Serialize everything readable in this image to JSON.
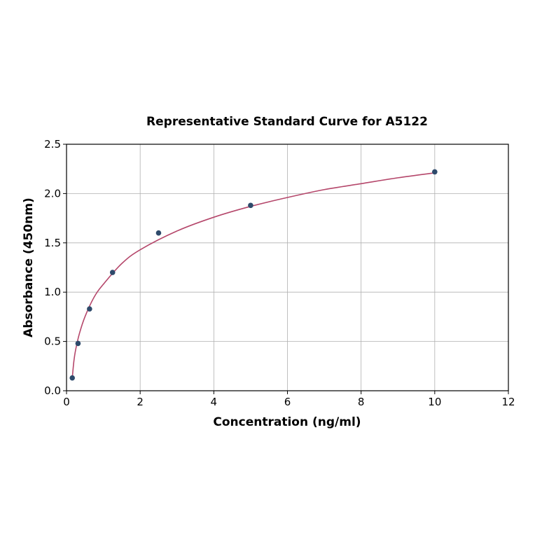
{
  "chart_data": {
    "type": "scatter",
    "title": "Representative Standard Curve for A5122",
    "xlabel": "Concentration (ng/ml)",
    "ylabel": "Absorbance (450nm)",
    "xlim": [
      0,
      12
    ],
    "ylim": [
      0,
      2.5
    ],
    "xticks": [
      "0",
      "2",
      "4",
      "6",
      "8",
      "10",
      "12"
    ],
    "yticks": [
      "0.0",
      "0.5",
      "1.0",
      "1.5",
      "2.0",
      "2.5"
    ],
    "grid": true,
    "points": {
      "x": [
        0.156,
        0.3125,
        0.625,
        1.25,
        2.5,
        5,
        10
      ],
      "y": [
        0.13,
        0.48,
        0.83,
        1.2,
        1.6,
        1.88,
        2.22
      ],
      "color": "#2e4a6b"
    },
    "fit_curve": {
      "x": [
        0.156,
        0.2,
        0.25,
        0.35,
        0.5,
        0.75,
        1,
        1.5,
        2,
        3,
        4,
        5,
        6,
        7,
        8,
        9,
        10
      ],
      "y": [
        0.13,
        0.3,
        0.42,
        0.58,
        0.75,
        0.95,
        1.08,
        1.29,
        1.43,
        1.62,
        1.76,
        1.87,
        1.96,
        2.04,
        2.1,
        2.16,
        2.21
      ],
      "color": "#b5476b"
    }
  }
}
